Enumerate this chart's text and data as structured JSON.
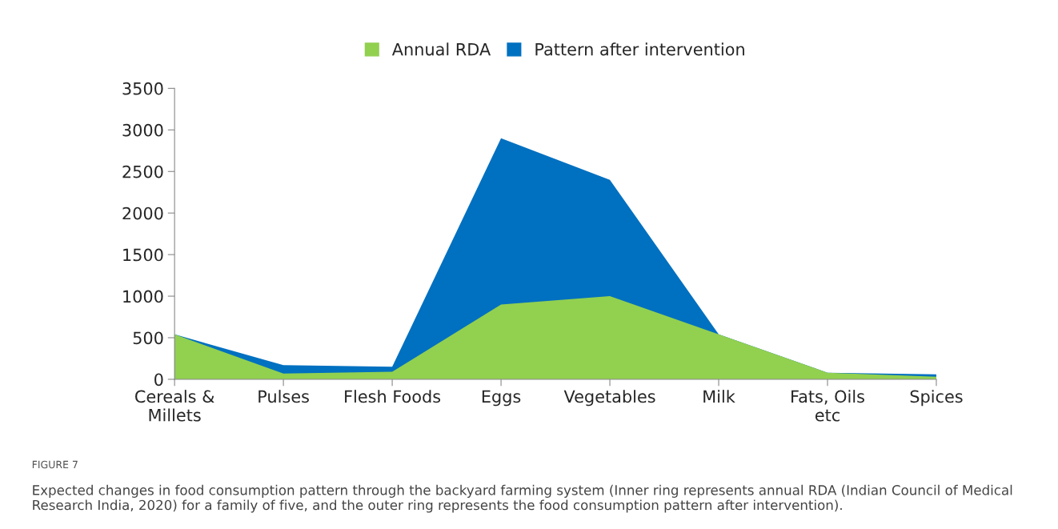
{
  "chart_data": {
    "type": "area",
    "categories": [
      "Cereals &\nMillets",
      "Pulses",
      "Flesh Foods",
      "Eggs",
      "Vegetables",
      "Milk",
      "Fats, Oils\netc",
      "Spices"
    ],
    "series": [
      {
        "name": "Annual RDA",
        "color": "#92d050",
        "values": [
          540,
          70,
          90,
          900,
          1000,
          540,
          80,
          30
        ]
      },
      {
        "name": "Pattern after intervention",
        "color": "#0070c0",
        "values": [
          540,
          170,
          150,
          2900,
          2400,
          540,
          80,
          60
        ]
      }
    ],
    "ylim": [
      0,
      3500
    ],
    "yticks": [
      0,
      500,
      1000,
      1500,
      2000,
      2500,
      3000,
      3500
    ],
    "grid": false,
    "legend": "top",
    "annotations": [
      "FIGURE 7",
      "Expected changes in food consumption pattern through the backyard farming system (Inner ring represents annual RDA (Indian Council of Medical Research India, 2020) for a family of five, and the outer ring represents the food consumption pattern after intervention)."
    ]
  }
}
